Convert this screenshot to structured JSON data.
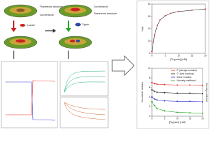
{
  "diagram": {
    "labels": {
      "gold_1": "Gold electrode",
      "piezo_1": "Piezoelectric transducer",
      "casein": "β-casein",
      "gold_2": "Gold electrode",
      "piezo_2": "Piezoelectric transducer",
      "trypsin": "Trypsin"
    }
  },
  "chart_data": [
    {
      "type": "line",
      "x_label": "[Trypsin] (nM)",
      "y_label": "kapp",
      "x": [
        0,
        0.5,
        1,
        2,
        3,
        5,
        7,
        10,
        15,
        20
      ],
      "series": [
        {
          "name": "kapp",
          "color": "#d33",
          "values": [
            3,
            18,
            30,
            45,
            54,
            61,
            65,
            68,
            70,
            72
          ]
        }
      ],
      "xlim": [
        0,
        20
      ],
      "ylim": [
        0,
        80
      ],
      "xticks": [
        0,
        5,
        10,
        15,
        20
      ],
      "yticks": [
        0,
        20,
        40,
        60,
        80
      ]
    },
    {
      "type": "line",
      "x_label": "[Trypsin] (nM)",
      "y_label": "Viscoelastic modulus",
      "y2_label": "Viscosity coefficient",
      "x": [
        0,
        1,
        2,
        5,
        10,
        15,
        20
      ],
      "series": [
        {
          "name": "G' (storage modulus)",
          "color": "#d22",
          "values": [
            7,
            6.8,
            6.7,
            6.6,
            6.5,
            6.5,
            6.4
          ]
        },
        {
          "name": "G'' (loss modulus)",
          "color": "#222",
          "values": [
            5.5,
            5.2,
            5,
            4.9,
            4.8,
            4.8,
            4.7
          ]
        },
        {
          "name": "Shear modulus",
          "color": "#33c",
          "values": [
            4,
            3.6,
            3.4,
            3.2,
            3.1,
            3.1,
            3
          ]
        },
        {
          "name": "Viscosity coefficient",
          "color": "#2a2",
          "values": [
            3,
            2.2,
            1.6,
            1.1,
            0.8,
            0.7,
            0.6
          ]
        }
      ],
      "xlim": [
        0,
        20
      ],
      "ylim": [
        0,
        10
      ],
      "xticks": [
        0,
        5,
        10,
        15,
        20
      ],
      "yticks": [
        0,
        2,
        4,
        6,
        8,
        10
      ]
    }
  ]
}
